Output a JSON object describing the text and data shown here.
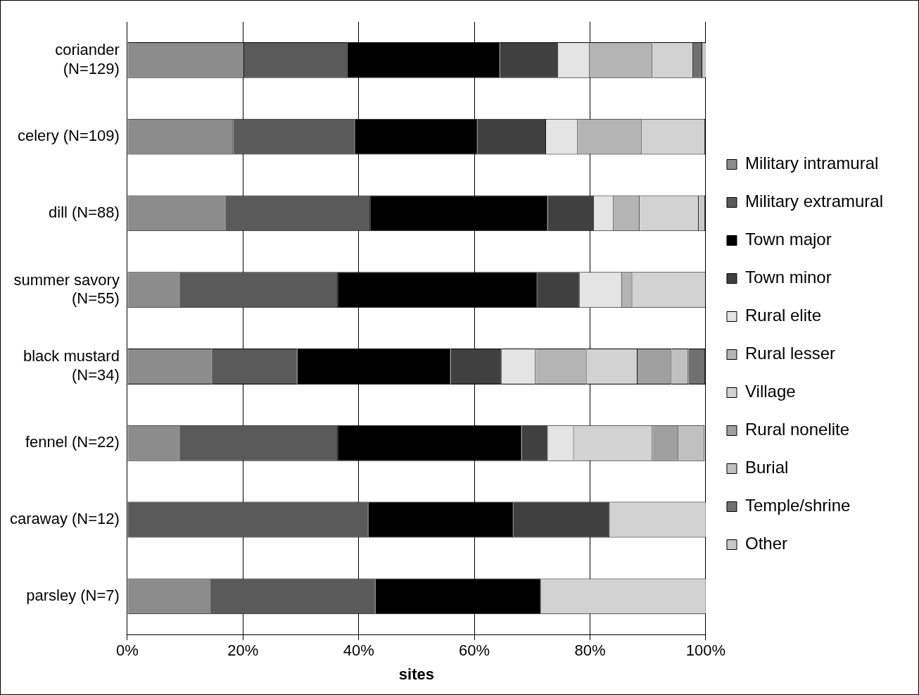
{
  "chart_data": {
    "type": "bar",
    "orientation": "horizontal",
    "stacked": true,
    "xlabel": "sites",
    "categories": [
      "coriander (N=129)",
      "celery (N=109)",
      "dill (N=88)",
      "summer savory (N=55)",
      "black mustard (N=34)",
      "fennel (N=22)",
      "caraway (N=12)",
      "parsley (N=7)"
    ],
    "series": [
      {
        "name": "Military intramural",
        "color": "#8c8c8c",
        "values": [
          20.2,
          18.3,
          17.0,
          9.1,
          14.7,
          9.1,
          0,
          14.3
        ]
      },
      {
        "name": "Military extramural",
        "color": "#5a5a5a",
        "values": [
          17.8,
          21.1,
          25.0,
          27.3,
          14.7,
          27.3,
          41.7,
          28.6
        ]
      },
      {
        "name": "Town major",
        "color": "#000000",
        "values": [
          26.4,
          21.1,
          30.7,
          34.5,
          26.5,
          31.8,
          25.0,
          28.6
        ]
      },
      {
        "name": "Town minor",
        "color": "#404040",
        "values": [
          10.1,
          11.9,
          8.0,
          7.3,
          8.8,
          4.5,
          16.7,
          0
        ]
      },
      {
        "name": "Rural elite",
        "color": "#e4e4e4",
        "values": [
          5.4,
          5.5,
          3.4,
          7.3,
          5.9,
          4.5,
          0,
          0
        ]
      },
      {
        "name": "Rural lesser",
        "color": "#b4b4b4",
        "values": [
          10.9,
          11.0,
          4.5,
          1.8,
          8.8,
          0,
          0,
          0
        ]
      },
      {
        "name": "Village",
        "color": "#d2d2d2",
        "values": [
          7.0,
          11.0,
          10.2,
          12.7,
          8.8,
          13.6,
          16.7,
          28.6
        ]
      },
      {
        "name": "Rural nonelite",
        "color": "#a0a0a0",
        "values": [
          0,
          0,
          0,
          0,
          5.9,
          4.5,
          0,
          0
        ]
      },
      {
        "name": "Burial",
        "color": "#c0c0c0",
        "values": [
          0,
          0,
          0,
          0,
          2.9,
          4.5,
          0,
          0
        ]
      },
      {
        "name": "Temple/shrine",
        "color": "#707070",
        "values": [
          1.6,
          0,
          0,
          0,
          2.9,
          0,
          0,
          0
        ]
      },
      {
        "name": "Other",
        "color": "#c8c8c8",
        "values": [
          0.8,
          0,
          1.1,
          0,
          0,
          0,
          0,
          0
        ]
      }
    ],
    "xlim": [
      0,
      100
    ],
    "xticks": [
      {
        "value": 0,
        "label": "0%"
      },
      {
        "value": 20,
        "label": "20%"
      },
      {
        "value": 40,
        "label": "40%"
      },
      {
        "value": 60,
        "label": "60%"
      },
      {
        "value": 80,
        "label": "80%"
      },
      {
        "value": 100,
        "label": "100%"
      }
    ],
    "grid": "x",
    "legend": "right"
  }
}
